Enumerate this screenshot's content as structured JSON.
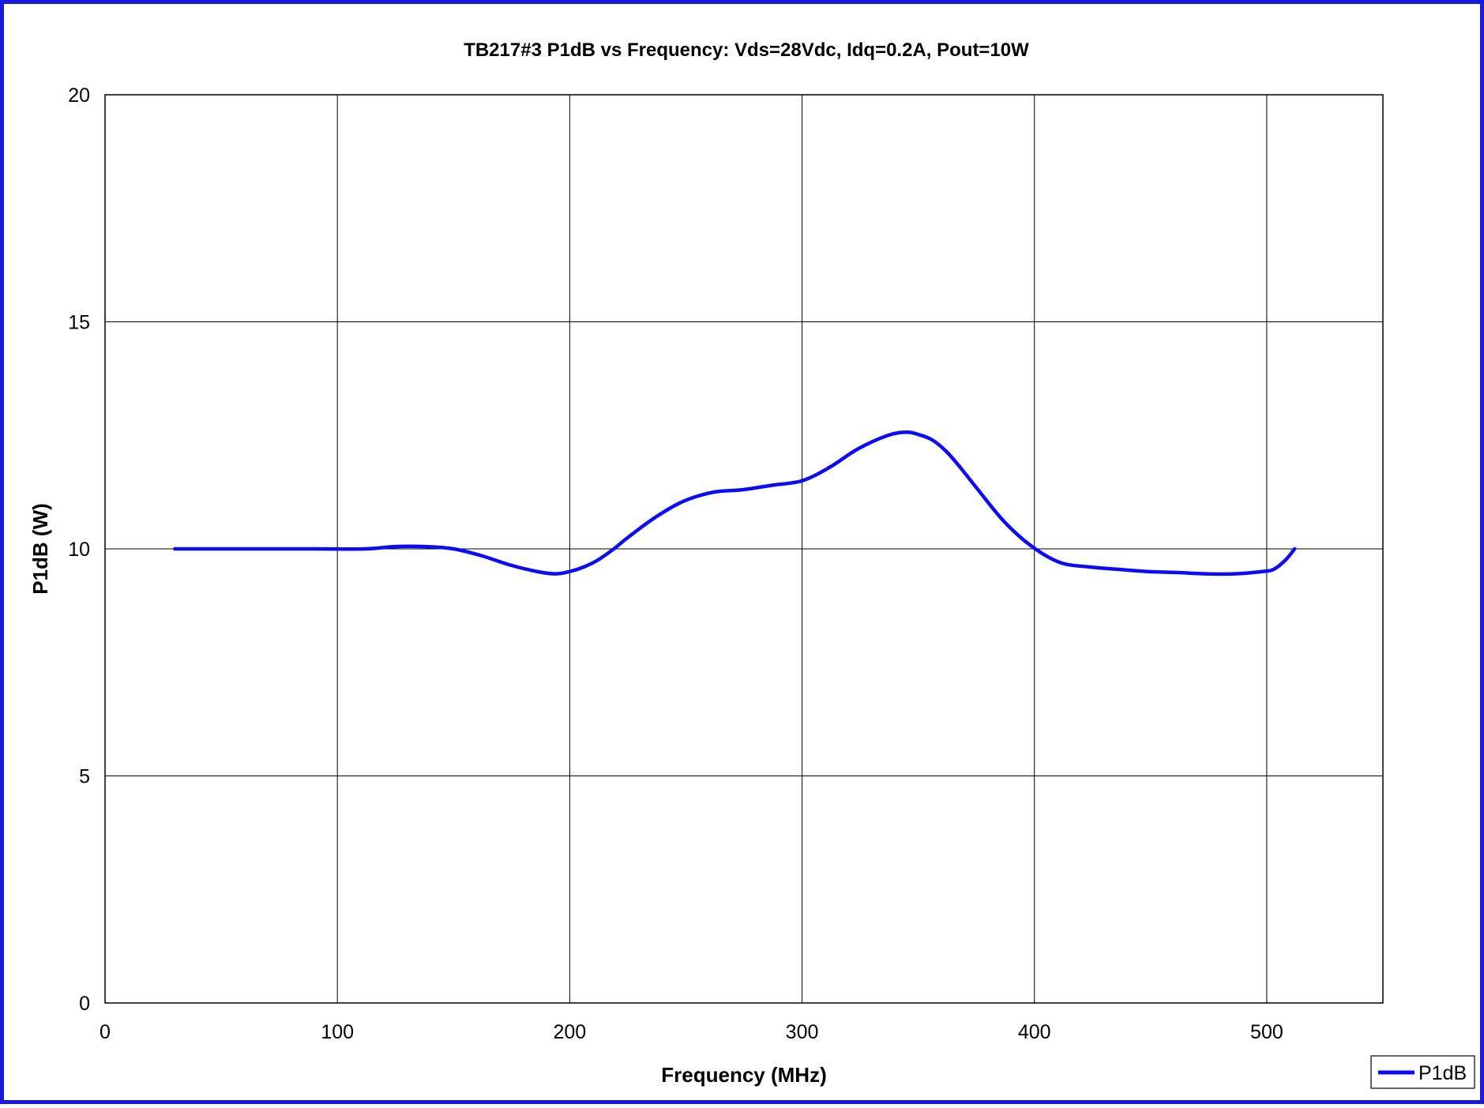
{
  "chart_data": {
    "type": "line",
    "title": "TB217#3 P1dB vs Frequency: Vds=28Vdc, Idq=0.2A, Pout=10W",
    "xlabel": "Frequency (MHz)",
    "ylabel": "P1dB (W)",
    "xlim": [
      0,
      550
    ],
    "ylim": [
      0,
      20
    ],
    "xticks": [
      0,
      100,
      200,
      300,
      400,
      500
    ],
    "yticks": [
      0,
      5,
      10,
      15,
      20
    ],
    "grid": true,
    "legend_position": "bottom-right",
    "series": [
      {
        "name": "P1dB",
        "color": "#0b0bf5",
        "x": [
          30,
          60,
          90,
          112,
          125,
          138,
          150,
          162,
          174,
          186,
          194,
          200,
          206,
          212,
          219,
          225,
          237,
          249,
          262,
          274,
          287,
          300,
          312,
          324,
          337,
          345,
          350,
          356,
          362,
          368,
          375,
          387,
          399,
          411,
          424,
          436,
          449,
          461,
          474,
          486,
          498,
          503,
          508,
          512
        ],
        "y": [
          10,
          10,
          10,
          10,
          10.05,
          10.05,
          10.0,
          9.85,
          9.65,
          9.5,
          9.45,
          9.5,
          9.6,
          9.75,
          10.0,
          10.25,
          10.7,
          11.05,
          11.25,
          11.3,
          11.4,
          11.5,
          11.8,
          12.2,
          12.5,
          12.57,
          12.52,
          12.4,
          12.15,
          11.8,
          11.35,
          10.6,
          10.05,
          9.7,
          9.6,
          9.55,
          9.5,
          9.48,
          9.45,
          9.45,
          9.5,
          9.55,
          9.75,
          10.0
        ]
      }
    ]
  }
}
